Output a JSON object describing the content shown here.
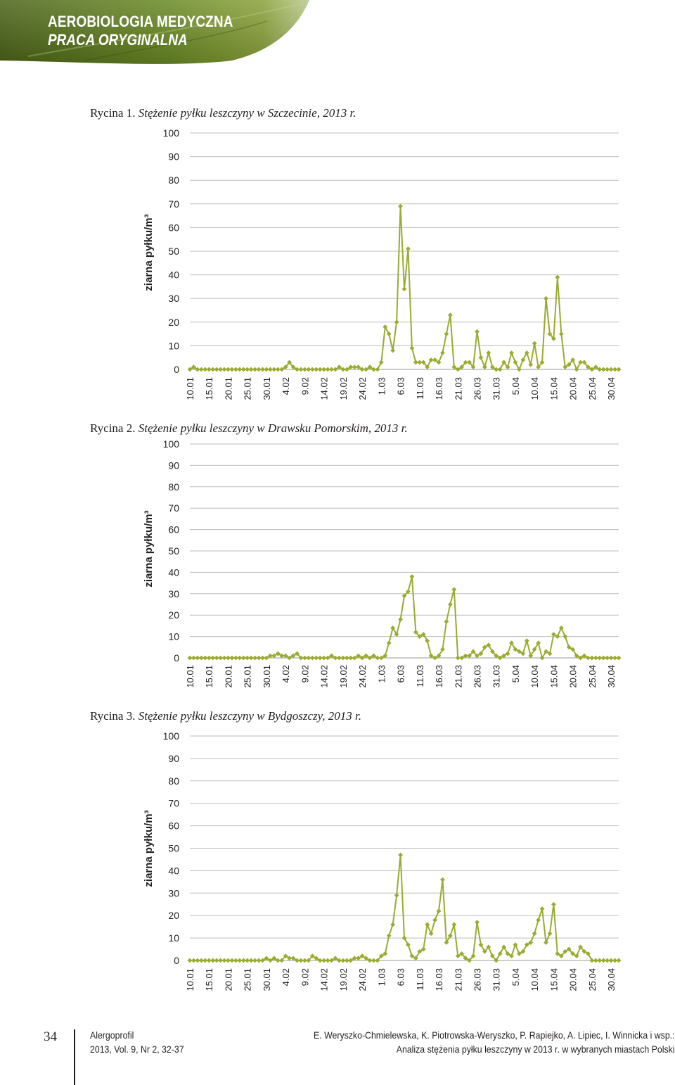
{
  "header": {
    "journal_section": "AEROBIOLOGIA MEDYCZNA",
    "article_type": "PRACA ORYGINALNA",
    "band_color": "#5d7a1e"
  },
  "figures": [
    {
      "label": "Rycina 1.",
      "caption": "Stężenie pyłku leszczyny w Szczecinie, 2013 r."
    },
    {
      "label": "Rycina 2.",
      "caption": "Stężenie pyłku leszczyny w Drawsku Pomorskim, 2013 r."
    },
    {
      "label": "Rycina 3.",
      "caption": "Stężenie pyłku leszczyny w Bydgoszczy, 2013 r."
    }
  ],
  "series_color": "#9aab2f",
  "chart_data": [
    {
      "type": "line",
      "ylabel": "ziarna pyłku/m³",
      "ylim": [
        0,
        100
      ],
      "yticks": [
        0,
        10,
        20,
        30,
        40,
        50,
        60,
        70,
        80,
        90,
        100
      ],
      "xtick_labels": [
        "10.01",
        "15.01",
        "20.01",
        "25.01",
        "30.01",
        "4.02",
        "9.02",
        "14.02",
        "19.02",
        "24.02",
        "1.03",
        "6.03",
        "11.03",
        "16.03",
        "21.03",
        "26.03",
        "31.03",
        "5.04",
        "10.04",
        "15.04",
        "20.04",
        "25.04",
        "30.04"
      ],
      "x_start": "10.01",
      "x_end": "30.04",
      "marker": "diamond",
      "grid": "horizontal",
      "values": [
        0,
        1,
        0,
        0,
        0,
        0,
        0,
        0,
        0,
        0,
        0,
        0,
        0,
        0,
        0,
        0,
        0,
        0,
        0,
        0,
        0,
        0,
        0,
        0,
        0,
        1,
        3,
        1,
        0,
        0,
        0,
        0,
        0,
        0,
        0,
        0,
        0,
        0,
        0,
        1,
        0,
        0,
        1,
        1,
        1,
        0,
        0,
        1,
        0,
        0,
        3,
        18,
        15,
        8,
        20,
        69,
        34,
        51,
        9,
        3,
        3,
        3,
        1,
        4,
        4,
        3,
        7,
        15,
        23,
        1,
        0,
        1,
        3,
        3,
        1,
        16,
        5,
        1,
        7,
        1,
        0,
        0,
        3,
        1,
        7,
        3,
        0,
        4,
        7,
        2,
        11,
        1,
        3,
        30,
        15,
        13,
        39,
        15,
        1,
        2,
        4,
        0,
        3,
        3,
        1,
        0,
        1,
        0,
        0,
        0,
        0,
        0,
        0
      ]
    },
    {
      "type": "line",
      "ylabel": "ziarna pyłku/m³",
      "ylim": [
        0,
        100
      ],
      "yticks": [
        0,
        10,
        20,
        30,
        40,
        50,
        60,
        70,
        80,
        90,
        100
      ],
      "xtick_labels": [
        "10.01",
        "15.01",
        "20.01",
        "25.01",
        "30.01",
        "4.02",
        "9.02",
        "14.02",
        "19.02",
        "24.02",
        "1.03",
        "6.03",
        "11.03",
        "16.03",
        "21.03",
        "26.03",
        "31.03",
        "5.04",
        "10.04",
        "15.04",
        "20.04",
        "25.04",
        "30.04"
      ],
      "x_start": "10.01",
      "x_end": "30.04",
      "marker": "diamond",
      "grid": "horizontal",
      "values": [
        0,
        0,
        0,
        0,
        0,
        0,
        0,
        0,
        0,
        0,
        0,
        0,
        0,
        0,
        0,
        0,
        0,
        0,
        0,
        0,
        0,
        1,
        1,
        2,
        1,
        1,
        0,
        1,
        2,
        0,
        0,
        0,
        0,
        0,
        0,
        0,
        0,
        1,
        0,
        0,
        0,
        0,
        0,
        0,
        1,
        0,
        1,
        0,
        1,
        0,
        0,
        1,
        7,
        14,
        11,
        18,
        29,
        31,
        38,
        12,
        10,
        11,
        8,
        1,
        0,
        1,
        4,
        17,
        25,
        32,
        0,
        0,
        1,
        1,
        3,
        1,
        2,
        5,
        6,
        3,
        1,
        0,
        1,
        2,
        7,
        4,
        3,
        2,
        8,
        1,
        4,
        7,
        0,
        3,
        2,
        11,
        10,
        14,
        10,
        5,
        4,
        1,
        0,
        1,
        0,
        0,
        0,
        0,
        0,
        0,
        0,
        0,
        0
      ]
    },
    {
      "type": "line",
      "ylabel": "ziarna pyłku/m³",
      "ylim": [
        0,
        100
      ],
      "yticks": [
        0,
        10,
        20,
        30,
        40,
        50,
        60,
        70,
        80,
        90,
        100
      ],
      "xtick_labels": [
        "10.01",
        "15.01",
        "20.01",
        "25.01",
        "30.01",
        "4.02",
        "9.02",
        "14.02",
        "19.02",
        "24.02",
        "1.03",
        "6.03",
        "11.03",
        "16.03",
        "21.03",
        "26.03",
        "31.03",
        "5.04",
        "10.04",
        "15.04",
        "20.04",
        "25.04",
        "30.04"
      ],
      "x_start": "10.01",
      "x_end": "30.04",
      "marker": "diamond",
      "grid": "horizontal",
      "values": [
        0,
        0,
        0,
        0,
        0,
        0,
        0,
        0,
        0,
        0,
        0,
        0,
        0,
        0,
        0,
        0,
        0,
        0,
        0,
        0,
        1,
        0,
        1,
        0,
        0,
        2,
        1,
        1,
        0,
        0,
        0,
        0,
        2,
        1,
        0,
        0,
        0,
        0,
        1,
        0,
        0,
        0,
        0,
        1,
        1,
        2,
        1,
        0,
        0,
        0,
        2,
        3,
        11,
        16,
        29,
        47,
        10,
        7,
        2,
        1,
        4,
        5,
        16,
        12,
        18,
        22,
        36,
        8,
        11,
        16,
        2,
        3,
        1,
        0,
        2,
        17,
        7,
        4,
        6,
        2,
        0,
        3,
        6,
        3,
        2,
        7,
        3,
        4,
        7,
        8,
        12,
        18,
        23,
        8,
        12,
        25,
        3,
        2,
        4,
        5,
        3,
        2,
        6,
        4,
        3,
        0,
        0,
        0,
        0,
        0,
        0,
        0,
        0
      ]
    }
  ],
  "footer": {
    "page_number": "34",
    "journal_name": "Alergoprofil",
    "journal_issue": "2013, Vol. 9, Nr 2, 32-37",
    "authors": "E. Weryszko-Chmielewska, K. Piotrowska-Weryszko, P. Rapiejko, A. Lipiec, I. Winnicka i wsp.:",
    "article_title": "Analiza stężenia pyłku leszczyny w 2013 r. w wybranych miastach Polski"
  }
}
